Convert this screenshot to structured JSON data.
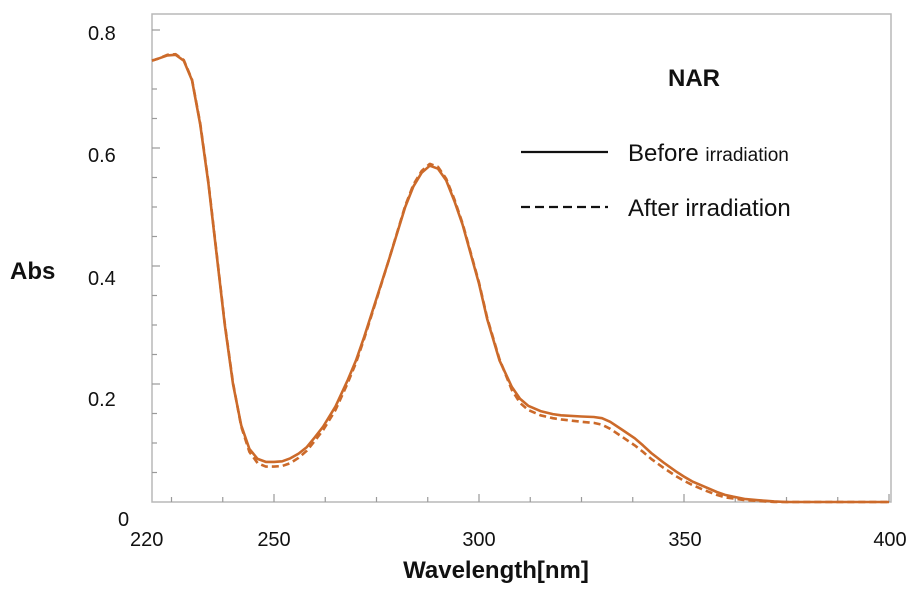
{
  "chart_data": {
    "type": "line",
    "title": "NAR",
    "xlabel": "Wavelength[nm]",
    "ylabel": "Abs",
    "xlim": [
      220,
      400
    ],
    "ylim": [
      0,
      0.8
    ],
    "x_ticks": [
      "220",
      "250",
      "300",
      "350",
      "400"
    ],
    "y_ticks": [
      "0",
      "0.2",
      "0.4",
      "0.6",
      "0.8"
    ],
    "grid": false,
    "legend_position": "top-right",
    "line_color": "#cc6a2a",
    "series": [
      {
        "name": "Before irradiation",
        "name_main": "Before ",
        "name_small": "irradiation",
        "style": "solid",
        "x": [
          220,
          222,
          224,
          226,
          228,
          230,
          232,
          234,
          236,
          238,
          240,
          242,
          244,
          246,
          248,
          250,
          252,
          254,
          256,
          258,
          260,
          262,
          265,
          268,
          270,
          272,
          275,
          278,
          280,
          282,
          284,
          286,
          288,
          290,
          292,
          294,
          296,
          298,
          300,
          302,
          305,
          308,
          310,
          312,
          315,
          318,
          320,
          325,
          328,
          330,
          332,
          335,
          338,
          340,
          342,
          345,
          348,
          350,
          352,
          355,
          358,
          360,
          362,
          365,
          368,
          370,
          372,
          375,
          380,
          385,
          390,
          395,
          400
        ],
        "y": [
          0.748,
          0.752,
          0.757,
          0.758,
          0.748,
          0.715,
          0.64,
          0.54,
          0.42,
          0.3,
          0.2,
          0.13,
          0.09,
          0.073,
          0.068,
          0.068,
          0.069,
          0.074,
          0.082,
          0.093,
          0.11,
          0.128,
          0.162,
          0.207,
          0.24,
          0.28,
          0.345,
          0.41,
          0.455,
          0.5,
          0.535,
          0.558,
          0.57,
          0.565,
          0.545,
          0.51,
          0.47,
          0.42,
          0.37,
          0.31,
          0.24,
          0.195,
          0.175,
          0.163,
          0.154,
          0.149,
          0.147,
          0.145,
          0.144,
          0.142,
          0.136,
          0.122,
          0.108,
          0.096,
          0.083,
          0.067,
          0.052,
          0.043,
          0.035,
          0.026,
          0.017,
          0.012,
          0.009,
          0.005,
          0.003,
          0.002,
          0.001,
          0.0,
          0.0,
          0.0,
          0.0,
          0.0,
          0.0
        ]
      },
      {
        "name": "After irradiation",
        "style": "dashed",
        "x": [
          220,
          222,
          224,
          226,
          228,
          230,
          232,
          234,
          236,
          238,
          240,
          242,
          244,
          246,
          248,
          250,
          252,
          254,
          256,
          258,
          260,
          262,
          265,
          268,
          270,
          272,
          275,
          278,
          280,
          282,
          284,
          286,
          288,
          290,
          292,
          294,
          296,
          298,
          300,
          302,
          305,
          308,
          310,
          312,
          315,
          318,
          320,
          325,
          328,
          330,
          332,
          335,
          338,
          340,
          342,
          345,
          348,
          350,
          352,
          355,
          358,
          360,
          362,
          365,
          368,
          370,
          372,
          375,
          380,
          385,
          390,
          395,
          400
        ],
        "y": [
          0.748,
          0.752,
          0.758,
          0.759,
          0.749,
          0.716,
          0.642,
          0.542,
          0.422,
          0.302,
          0.202,
          0.128,
          0.085,
          0.066,
          0.06,
          0.06,
          0.061,
          0.066,
          0.075,
          0.087,
          0.104,
          0.122,
          0.156,
          0.202,
          0.236,
          0.277,
          0.343,
          0.41,
          0.456,
          0.502,
          0.538,
          0.561,
          0.573,
          0.568,
          0.548,
          0.513,
          0.472,
          0.422,
          0.372,
          0.312,
          0.242,
          0.19,
          0.168,
          0.156,
          0.147,
          0.142,
          0.14,
          0.136,
          0.134,
          0.131,
          0.124,
          0.11,
          0.096,
          0.085,
          0.073,
          0.058,
          0.044,
          0.036,
          0.029,
          0.02,
          0.012,
          0.008,
          0.006,
          0.003,
          0.002,
          0.001,
          0.0,
          0.0,
          0.0,
          0.0,
          0.0,
          0.0,
          0.0
        ]
      }
    ]
  }
}
